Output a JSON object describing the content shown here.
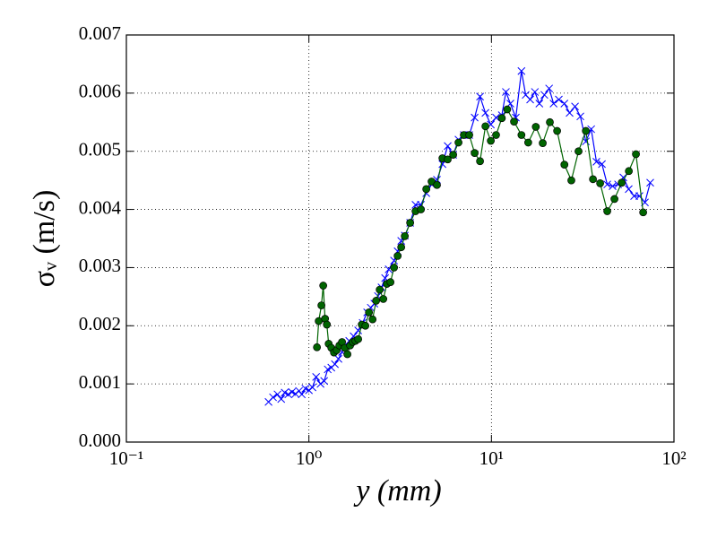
{
  "chart_data": {
    "type": "line",
    "xlabel": "y (mm)",
    "ylabel": "σᵥ (m/s)",
    "xscale": "log",
    "grid": true,
    "xlim": [
      0.1,
      100
    ],
    "xticks": [
      {
        "value": 0.1,
        "label": "10⁻¹"
      },
      {
        "value": 1,
        "label": "10⁰"
      },
      {
        "value": 10,
        "label": "10¹"
      },
      {
        "value": 100,
        "label": "10²"
      }
    ],
    "ylim": [
      0,
      0.007
    ],
    "yticks": [
      {
        "value": 0,
        "label": "0.000"
      },
      {
        "value": 0.001,
        "label": "0.001"
      },
      {
        "value": 0.002,
        "label": "0.002"
      },
      {
        "value": 0.003,
        "label": "0.003"
      },
      {
        "value": 0.004,
        "label": "0.004"
      },
      {
        "value": 0.005,
        "label": "0.005"
      },
      {
        "value": 0.006,
        "label": "0.006"
      },
      {
        "value": 0.007,
        "label": "0.007"
      }
    ],
    "series": [
      {
        "color": "#0000ff",
        "marker": "x",
        "x": [
          0.601,
          0.636,
          0.673,
          0.705,
          0.737,
          0.771,
          0.807,
          0.844,
          0.883,
          0.914,
          0.956,
          1.0,
          1.046,
          1.095,
          1.158,
          1.212,
          1.268,
          1.327,
          1.388,
          1.452,
          1.519,
          1.589,
          1.663,
          1.758,
          1.862,
          1.97,
          2.085,
          2.183,
          2.283,
          2.389,
          2.5,
          2.615,
          2.736,
          2.927,
          3.063,
          3.204,
          3.352,
          3.587,
          3.838,
          4.107,
          4.395,
          4.7,
          5.03,
          5.39,
          5.76,
          6.17,
          6.6,
          7.06,
          7.56,
          8.09,
          8.66,
          9.27,
          9.92,
          10.6,
          11.4,
          12.0,
          12.7,
          13.6,
          14.6,
          15.4,
          16.3,
          17.3,
          18.3,
          19.5,
          20.7,
          21.9,
          23.4,
          25.1,
          26.8,
          28.7,
          30.7,
          32.9,
          35.2,
          37.6,
          40.3,
          43.1,
          46.1,
          49.4,
          52.8,
          56.5,
          60.5,
          64.7,
          69.3,
          74.1
        ],
        "values": [
          0.00069,
          0.00077,
          0.00082,
          0.00074,
          0.00085,
          0.00082,
          0.00086,
          0.00083,
          0.00088,
          0.00082,
          0.00092,
          0.00089,
          0.00094,
          0.00112,
          0.001,
          0.00105,
          0.00125,
          0.00128,
          0.00134,
          0.00143,
          0.00155,
          0.00166,
          0.00174,
          0.00182,
          0.00192,
          0.00205,
          0.00223,
          0.00231,
          0.00238,
          0.00251,
          0.00266,
          0.00282,
          0.00297,
          0.00312,
          0.00328,
          0.00346,
          0.00355,
          0.00377,
          0.00408,
          0.00408,
          0.00428,
          0.00443,
          0.00451,
          0.00478,
          0.00509,
          0.00494,
          0.0052,
          0.00528,
          0.00528,
          0.00558,
          0.00594,
          0.00566,
          0.00546,
          0.00558,
          0.00562,
          0.00602,
          0.00582,
          0.00558,
          0.00638,
          0.00597,
          0.00589,
          0.00602,
          0.00582,
          0.00597,
          0.00608,
          0.00582,
          0.00589,
          0.00582,
          0.00566,
          0.00577,
          0.0056,
          0.00517,
          0.00538,
          0.00482,
          0.00478,
          0.00443,
          0.0044,
          0.00443,
          0.00455,
          0.00435,
          0.00423,
          0.00423,
          0.00412,
          0.00446
        ]
      },
      {
        "color": "#006400",
        "marker": "o",
        "x": [
          1.107,
          1.132,
          1.171,
          1.198,
          1.226,
          1.254,
          1.283,
          1.327,
          1.372,
          1.42,
          1.468,
          1.519,
          1.571,
          1.625,
          1.681,
          1.74,
          1.799,
          1.862,
          1.948,
          2.039,
          2.133,
          2.232,
          2.335,
          2.443,
          2.556,
          2.674,
          2.798,
          2.927,
          3.063,
          3.204,
          3.352,
          3.587,
          3.838,
          4.107,
          4.395,
          4.7,
          5.03,
          5.39,
          5.76,
          6.17,
          6.6,
          7.06,
          7.56,
          8.09,
          8.66,
          9.27,
          9.92,
          10.6,
          11.4,
          12.2,
          13.3,
          14.6,
          15.9,
          17.5,
          19.1,
          20.9,
          22.9,
          25.1,
          27.4,
          30.0,
          32.9,
          36.0,
          39.4,
          43.1,
          47.2,
          51.7,
          56.6,
          61.9,
          67.8
        ],
        "values": [
          0.00163,
          0.00208,
          0.00235,
          0.00269,
          0.00212,
          0.00202,
          0.00169,
          0.00162,
          0.00154,
          0.00158,
          0.00166,
          0.00172,
          0.00162,
          0.00151,
          0.00166,
          0.00172,
          0.00174,
          0.00177,
          0.00202,
          0.002,
          0.00223,
          0.00211,
          0.00243,
          0.00262,
          0.00246,
          0.00272,
          0.00275,
          0.003,
          0.0032,
          0.00335,
          0.00354,
          0.00377,
          0.00397,
          0.004,
          0.00435,
          0.00448,
          0.00442,
          0.00488,
          0.00486,
          0.00494,
          0.00515,
          0.00528,
          0.00528,
          0.00497,
          0.00483,
          0.00543,
          0.00518,
          0.00528,
          0.00557,
          0.00572,
          0.00551,
          0.00528,
          0.00515,
          0.00542,
          0.00514,
          0.0055,
          0.00535,
          0.00477,
          0.0045,
          0.005,
          0.00535,
          0.00452,
          0.00445,
          0.00397,
          0.00418,
          0.00446,
          0.00466,
          0.00495,
          0.00395
        ]
      }
    ]
  }
}
